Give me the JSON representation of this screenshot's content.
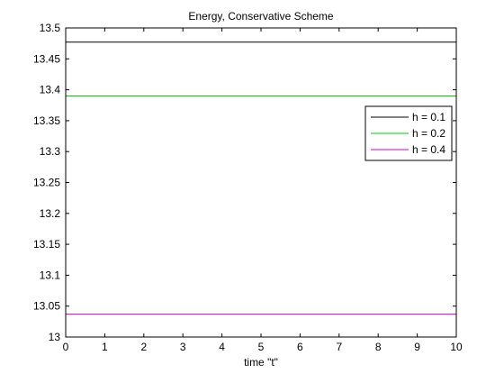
{
  "chart_data": {
    "type": "line",
    "title": "Energy, Conservative Scheme",
    "xlabel": "time \"t\"",
    "ylabel": "",
    "xlim": [
      0,
      10
    ],
    "ylim": [
      13,
      13.5
    ],
    "xticks": [
      "0",
      "1",
      "2",
      "3",
      "4",
      "5",
      "6",
      "7",
      "8",
      "9",
      "10"
    ],
    "yticks": [
      "13",
      "13.05",
      "13.1",
      "13.15",
      "13.2",
      "13.25",
      "13.3",
      "13.35",
      "13.4",
      "13.45",
      "13.5"
    ],
    "grid": false,
    "legend_position": "upper-right",
    "series": [
      {
        "name": "h = 0.1",
        "color": "#000000",
        "x": [
          0,
          10
        ],
        "y": [
          13.477,
          13.477
        ]
      },
      {
        "name": "h = 0.2",
        "color": "#00cc00",
        "x": [
          0,
          10
        ],
        "y": [
          13.39,
          13.39
        ]
      },
      {
        "name": "h = 0.4",
        "color": "#cc00cc",
        "x": [
          0,
          10
        ],
        "y": [
          13.037,
          13.037
        ]
      }
    ]
  }
}
